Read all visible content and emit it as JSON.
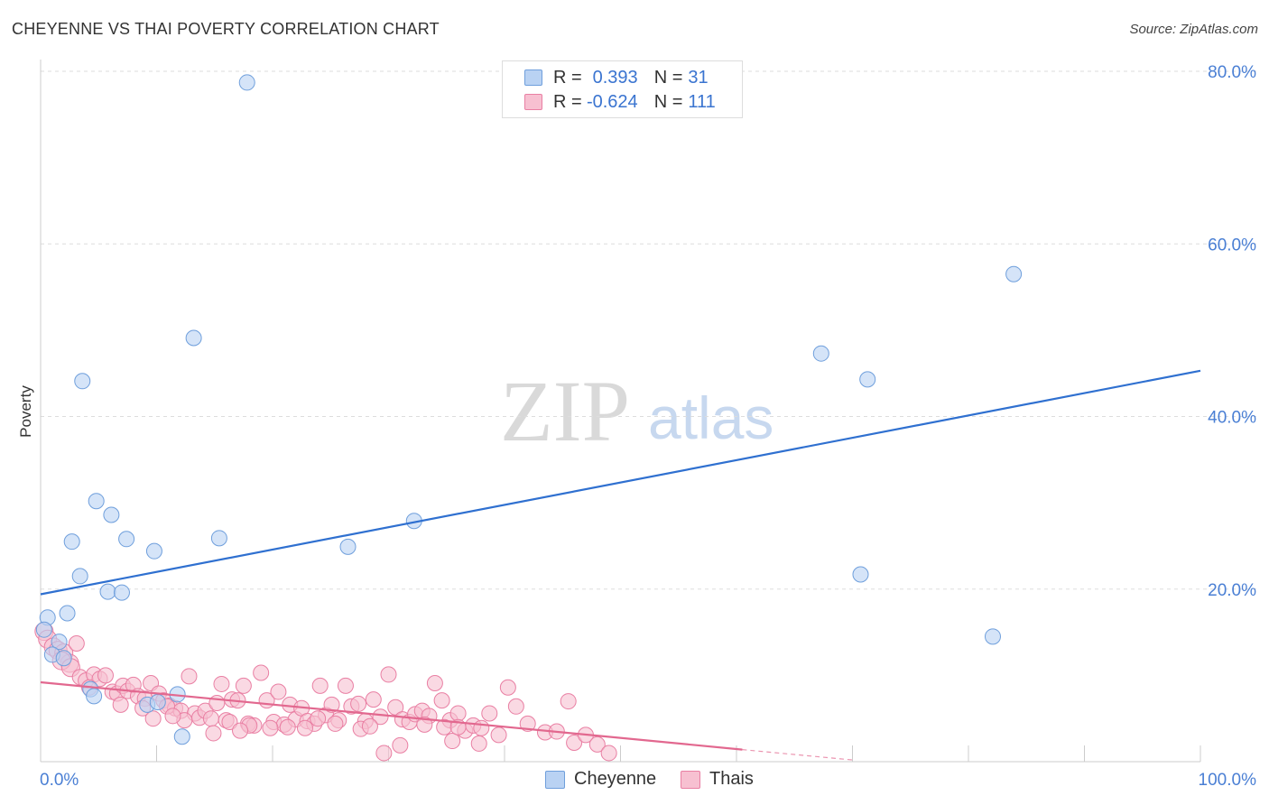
{
  "title": "CHEYENNE VS THAI POVERTY CORRELATION CHART",
  "source": "Source: ZipAtlas.com",
  "watermark": {
    "zip": "ZIP",
    "atlas": "atlas"
  },
  "colors": {
    "cheyenne_fill": "#b9d2f3",
    "cheyenne_stroke": "#6f9fdc",
    "cheyenne_line": "#2f70d0",
    "thai_fill": "#f7c0d1",
    "thai_stroke": "#e97fa3",
    "thai_line": "#e2688f",
    "tick_label": "#4a7fd4",
    "grid": "#dddddd"
  },
  "legend": {
    "rows": [
      {
        "r_label": "R =",
        "r_value": "0.393",
        "n_label": "N =",
        "n_value": "31"
      },
      {
        "r_label": "R =",
        "r_value": "-0.624",
        "n_label": "N =",
        "n_value": "111"
      }
    ]
  },
  "chart_data": {
    "type": "scatter",
    "title": "CHEYENNE VS THAI POVERTY CORRELATION CHART",
    "xlabel": "",
    "ylabel": "Poverty",
    "xlim": [
      0,
      100
    ],
    "ylim": [
      0,
      80
    ],
    "x_tick_labels": [
      "0.0%",
      "100.0%"
    ],
    "y_ticks": [
      20,
      40,
      60,
      80
    ],
    "y_tick_labels": [
      "20.0%",
      "40.0%",
      "60.0%",
      "80.0%"
    ],
    "grid": true,
    "legend_position": "top-center",
    "series": [
      {
        "name": "Cheyenne",
        "r": 0.393,
        "n": 31,
        "trend": {
          "x": [
            0,
            100
          ],
          "y": [
            19.4,
            45.3
          ]
        },
        "points": [
          [
            17.8,
            78.7
          ],
          [
            83.9,
            56.5
          ],
          [
            13.2,
            49.1
          ],
          [
            67.3,
            47.3
          ],
          [
            3.6,
            44.1
          ],
          [
            71.3,
            44.3
          ],
          [
            4.8,
            30.2
          ],
          [
            6.1,
            28.6
          ],
          [
            32.2,
            27.9
          ],
          [
            2.7,
            25.5
          ],
          [
            7.4,
            25.8
          ],
          [
            15.4,
            25.9
          ],
          [
            26.5,
            24.9
          ],
          [
            9.8,
            24.4
          ],
          [
            3.4,
            21.5
          ],
          [
            70.7,
            21.7
          ],
          [
            5.8,
            19.7
          ],
          [
            7.0,
            19.6
          ],
          [
            2.3,
            17.2
          ],
          [
            0.6,
            16.7
          ],
          [
            0.3,
            15.3
          ],
          [
            82.1,
            14.5
          ],
          [
            1.6,
            13.9
          ],
          [
            1.0,
            12.4
          ],
          [
            2.0,
            12.0
          ],
          [
            4.3,
            8.4
          ],
          [
            4.6,
            7.6
          ],
          [
            11.8,
            7.8
          ],
          [
            9.2,
            6.6
          ],
          [
            10.1,
            6.9
          ],
          [
            12.2,
            2.9
          ]
        ]
      },
      {
        "name": "Thais",
        "r": -0.624,
        "n": 111,
        "trend": {
          "x": [
            0,
            60.5
          ],
          "y": [
            9.2,
            1.4
          ]
        },
        "trend_dashed": {
          "x": [
            60.5,
            70
          ],
          "y": [
            1.4,
            0.2
          ]
        },
        "points": [
          [
            0.3,
            15.1
          ],
          [
            0.6,
            14.2
          ],
          [
            1.1,
            13.3
          ],
          [
            1.5,
            12.9
          ],
          [
            2.0,
            12.6
          ],
          [
            2.5,
            11.4
          ],
          [
            3.1,
            13.7
          ],
          [
            1.8,
            11.7
          ],
          [
            2.6,
            10.9
          ],
          [
            3.4,
            9.8
          ],
          [
            3.9,
            9.4
          ],
          [
            4.6,
            10.1
          ],
          [
            5.1,
            9.6
          ],
          [
            5.6,
            10.0
          ],
          [
            4.2,
            8.6
          ],
          [
            6.2,
            8.1
          ],
          [
            6.6,
            7.9
          ],
          [
            7.1,
            8.8
          ],
          [
            7.5,
            8.2
          ],
          [
            8.0,
            8.9
          ],
          [
            8.4,
            7.6
          ],
          [
            9.0,
            7.3
          ],
          [
            9.5,
            9.1
          ],
          [
            10.2,
            7.9
          ],
          [
            10.6,
            7.1
          ],
          [
            11.1,
            6.5
          ],
          [
            11.6,
            6.2
          ],
          [
            12.1,
            5.9
          ],
          [
            12.8,
            9.9
          ],
          [
            13.3,
            5.6
          ],
          [
            13.7,
            5.1
          ],
          [
            14.2,
            5.9
          ],
          [
            14.7,
            5.0
          ],
          [
            15.2,
            6.8
          ],
          [
            15.6,
            9.0
          ],
          [
            16.0,
            4.8
          ],
          [
            16.5,
            7.2
          ],
          [
            17.0,
            7.1
          ],
          [
            17.5,
            8.8
          ],
          [
            17.9,
            4.4
          ],
          [
            18.4,
            4.2
          ],
          [
            19.0,
            10.3
          ],
          [
            19.5,
            7.1
          ],
          [
            20.1,
            4.6
          ],
          [
            20.5,
            8.1
          ],
          [
            21.0,
            4.3
          ],
          [
            21.5,
            6.6
          ],
          [
            22.0,
            4.9
          ],
          [
            22.5,
            6.2
          ],
          [
            23.0,
            4.7
          ],
          [
            23.6,
            4.4
          ],
          [
            24.1,
            8.8
          ],
          [
            24.6,
            5.4
          ],
          [
            25.1,
            6.6
          ],
          [
            25.7,
            4.8
          ],
          [
            26.3,
            8.8
          ],
          [
            26.8,
            6.4
          ],
          [
            27.4,
            6.7
          ],
          [
            28.0,
            4.7
          ],
          [
            28.7,
            7.2
          ],
          [
            29.3,
            5.2
          ],
          [
            30.0,
            10.1
          ],
          [
            30.6,
            6.3
          ],
          [
            31.2,
            4.9
          ],
          [
            31.8,
            4.6
          ],
          [
            32.3,
            5.5
          ],
          [
            32.9,
            5.9
          ],
          [
            33.5,
            5.3
          ],
          [
            34.0,
            9.1
          ],
          [
            34.6,
            7.1
          ],
          [
            35.3,
            4.8
          ],
          [
            36.0,
            5.6
          ],
          [
            36.6,
            3.6
          ],
          [
            37.3,
            4.2
          ],
          [
            38.0,
            3.9
          ],
          [
            38.7,
            5.6
          ],
          [
            39.5,
            3.1
          ],
          [
            40.3,
            8.6
          ],
          [
            41.0,
            6.4
          ],
          [
            42.0,
            4.4
          ],
          [
            43.5,
            3.4
          ],
          [
            44.5,
            3.5
          ],
          [
            45.5,
            7.0
          ],
          [
            46.0,
            2.2
          ],
          [
            47.0,
            3.1
          ],
          [
            48.0,
            2.0
          ],
          [
            49.0,
            1.0
          ],
          [
            35.5,
            2.4
          ],
          [
            37.8,
            2.1
          ],
          [
            29.6,
            1.0
          ],
          [
            31.0,
            1.9
          ],
          [
            8.8,
            6.2
          ],
          [
            10.9,
            6.4
          ],
          [
            6.9,
            6.6
          ],
          [
            12.4,
            4.8
          ],
          [
            14.9,
            3.3
          ],
          [
            18.0,
            4.2
          ],
          [
            19.8,
            3.9
          ],
          [
            21.3,
            4.0
          ],
          [
            22.8,
            3.9
          ],
          [
            25.4,
            4.4
          ],
          [
            27.6,
            3.8
          ],
          [
            33.1,
            4.3
          ],
          [
            34.8,
            4.0
          ],
          [
            16.3,
            4.6
          ],
          [
            23.9,
            5.0
          ],
          [
            28.4,
            4.1
          ],
          [
            17.2,
            3.6
          ],
          [
            36.0,
            4.0
          ],
          [
            9.7,
            5.0
          ],
          [
            11.4,
            5.3
          ]
        ]
      }
    ]
  },
  "bottom_legend": [
    {
      "label": "Cheyenne"
    },
    {
      "label": "Thais"
    }
  ]
}
